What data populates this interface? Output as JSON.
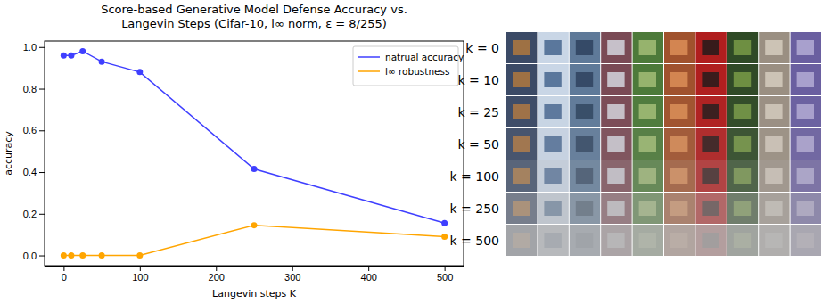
{
  "chart_data": {
    "type": "line",
    "title": "Score-based Generative Model Defense Accuracy vs.\nLangevin Steps (Cifar-10, l∞ norm, ε = 8/255)",
    "x_label": "Langevin steps K",
    "y_label": "accuracy",
    "x": [
      0,
      10,
      25,
      50,
      100,
      250,
      500
    ],
    "series": [
      {
        "name": "natrual accuracy",
        "color": "#3f3fff",
        "marker": "circle",
        "line_style": "solid",
        "values": [
          0.96,
          0.96,
          0.98,
          0.93,
          0.88,
          0.415,
          0.155
        ]
      },
      {
        "name": "l∞ robustness",
        "color": "#ffa500",
        "marker": "circle",
        "line_style": "solid",
        "values": [
          0,
          0,
          0,
          0,
          0,
          0.145,
          0.09
        ]
      }
    ],
    "xlim": [
      -25,
      525
    ],
    "ylim": [
      -0.049,
      1.029
    ],
    "xticks": [
      0,
      100,
      200,
      300,
      400,
      500
    ],
    "yticks": [
      {
        "value": 0,
        "label": "0.0"
      },
      0.2,
      0.4,
      0.6,
      0.8,
      {
        "value": 1,
        "label": "1.0"
      }
    ],
    "grid": false,
    "legend": "upper right"
  },
  "image_grid": {
    "row_labels": [
      "k = 0",
      "k = 10",
      "k = 25",
      "k = 50",
      "k = 100",
      "k = 250",
      "k = 500"
    ],
    "columns": 10
  }
}
